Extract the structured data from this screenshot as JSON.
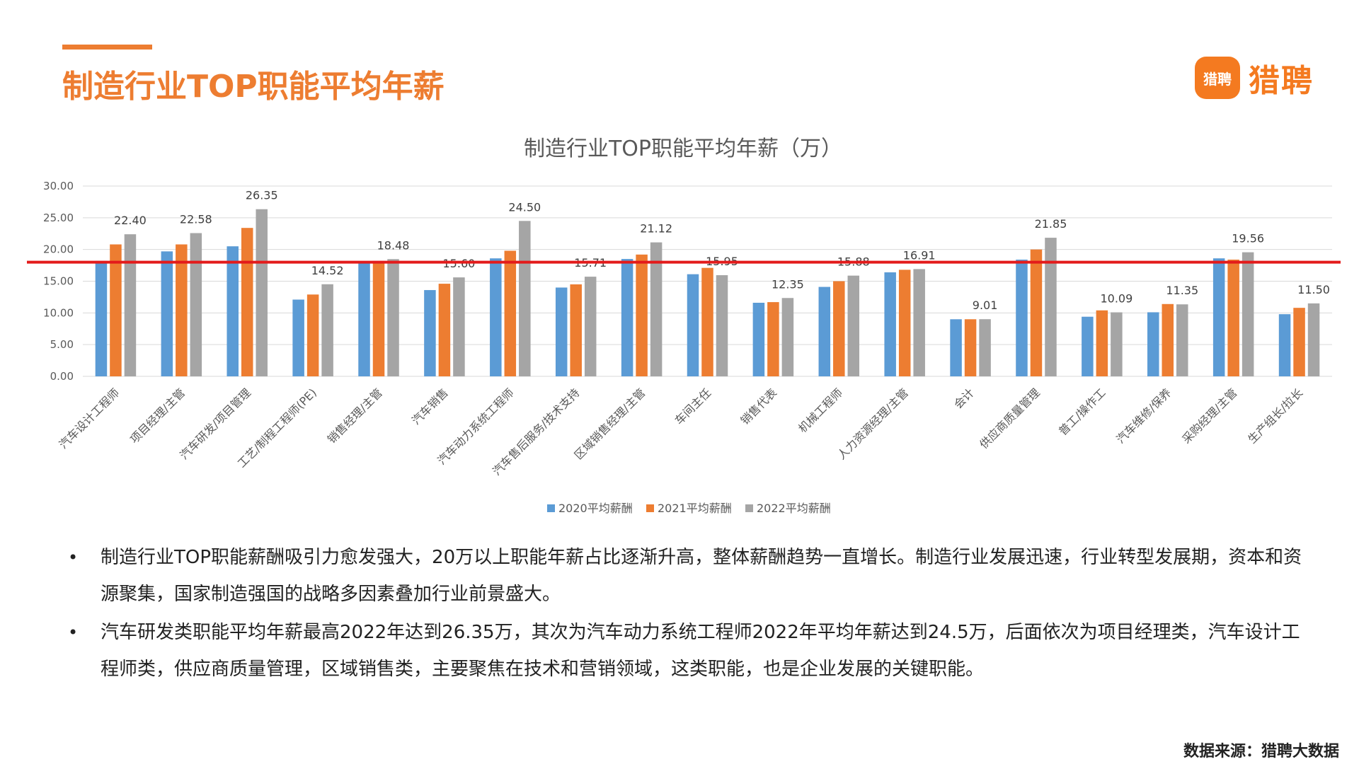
{
  "header": {
    "title": "制造行业TOP职能平均年薪",
    "logo_badge": "猎聘",
    "logo_text": "猎聘"
  },
  "chart_data": {
    "type": "bar",
    "title": "制造行业TOP职能平均年薪（万）",
    "categories": [
      "汽车设计工程师",
      "项目经理/主管",
      "汽车研发/项目管理",
      "工艺/制程工程师(PE)",
      "销售经理/主管",
      "汽车销售",
      "汽车动力系统工程师",
      "汽车售后服务/技术支持",
      "区域销售经理/主管",
      "车间主任",
      "销售代表",
      "机械工程师",
      "人力资源经理/主管",
      "会计",
      "供应商质量管理",
      "普工/操作工",
      "汽车维修/保养",
      "采购经理/主管",
      "生产组长/拉长"
    ],
    "series": [
      {
        "name": "2020平均薪酬",
        "color": "#5B9BD5",
        "values": [
          18.2,
          19.7,
          20.5,
          12.1,
          18.1,
          13.6,
          18.6,
          14.0,
          18.5,
          16.1,
          11.6,
          14.1,
          16.4,
          9.0,
          18.4,
          9.4,
          10.1,
          18.6,
          9.8
        ]
      },
      {
        "name": "2021平均薪酬",
        "color": "#ED7D31",
        "values": [
          20.8,
          20.8,
          23.4,
          12.9,
          18.2,
          14.6,
          19.8,
          14.5,
          19.2,
          17.1,
          11.7,
          15.0,
          16.8,
          9.0,
          20.0,
          10.4,
          11.4,
          18.4,
          10.8
        ]
      },
      {
        "name": "2022平均薪酬",
        "color": "#A5A5A5",
        "values": [
          22.4,
          22.58,
          26.35,
          14.52,
          18.48,
          15.6,
          24.5,
          15.71,
          21.12,
          15.95,
          12.35,
          15.88,
          16.91,
          9.01,
          21.85,
          10.09,
          11.35,
          19.56,
          11.5
        ]
      }
    ],
    "data_labels": [
      "22.40",
      "22.58",
      "26.35",
      "14.52",
      "18.48",
      "15.60",
      "24.50",
      "15.71",
      "21.12",
      "15.95",
      "12.35",
      "15.88",
      "16.91",
      "9.01",
      "21.85",
      "10.09",
      "11.35",
      "19.56",
      "11.50"
    ],
    "y_ticks": [
      "0.00",
      "5.00",
      "10.00",
      "15.00",
      "20.00",
      "25.00",
      "30.00"
    ],
    "ylim": [
      0,
      30
    ],
    "grid": true,
    "legend_position": "bottom",
    "reference_line": {
      "value": 18.0,
      "color": "#E31B1B"
    }
  },
  "bullets": [
    "制造行业TOP职能薪酬吸引力愈发强大，20万以上职能年薪占比逐渐升高，整体薪酬趋势一直增长。制造行业发展迅速，行业转型发展期，资本和资源聚集，国家制造强国的战略多因素叠加行业前景盛大。",
    "汽车研发类职能平均年薪最高2022年达到26.35万，其次为汽车动力系统工程师2022年平均年薪达到24.5万，后面依次为项目经理类，汽车设计工程师类，供应商质量管理，区域销售类，主要聚焦在技术和营销领域，这类职能，也是企业发展的关键职能。"
  ],
  "footer": {
    "source": "数据来源：猎聘大数据"
  }
}
